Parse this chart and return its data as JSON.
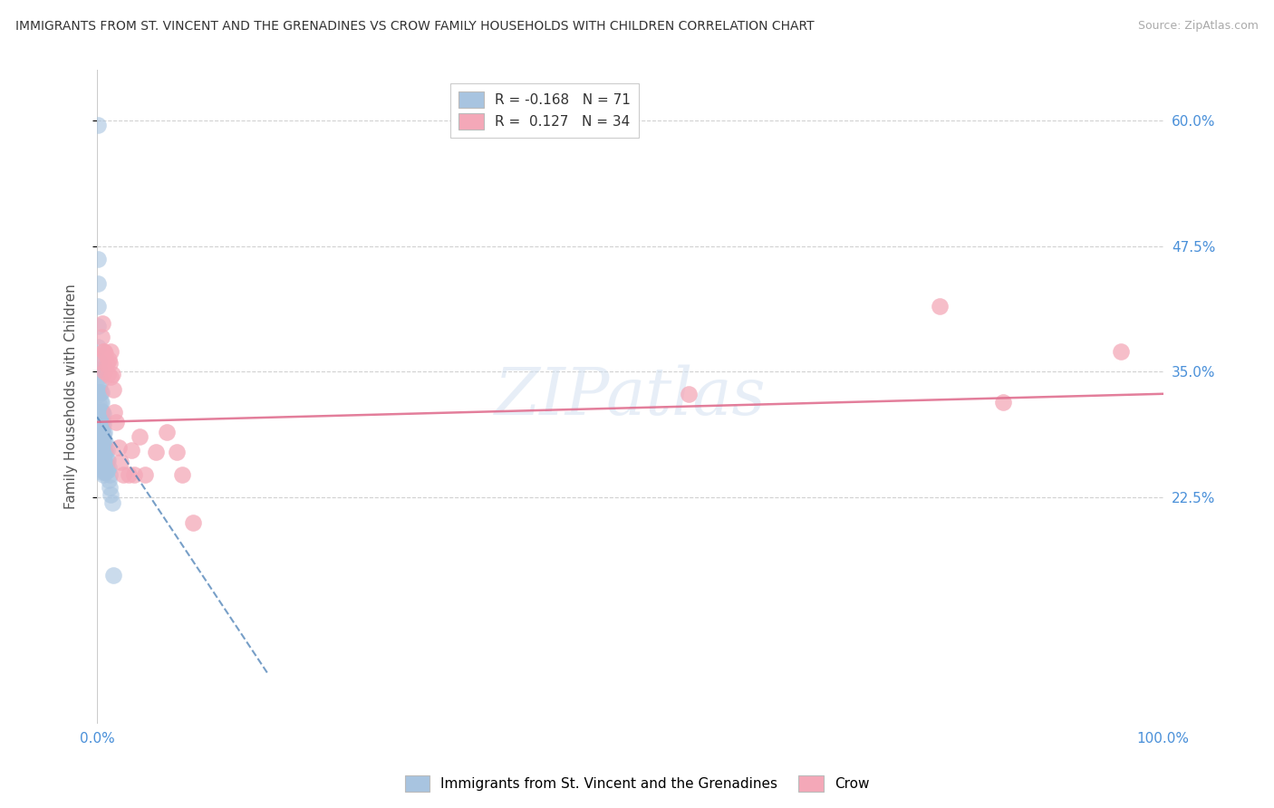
{
  "title": "IMMIGRANTS FROM ST. VINCENT AND THE GRENADINES VS CROW FAMILY HOUSEHOLDS WITH CHILDREN CORRELATION CHART",
  "source": "Source: ZipAtlas.com",
  "ylabel": "Family Households with Children",
  "xlim": [
    0,
    1.0
  ],
  "ylim": [
    0.0,
    0.65
  ],
  "yticks": [
    0.225,
    0.35,
    0.475,
    0.6
  ],
  "ytick_labels": [
    "22.5%",
    "35.0%",
    "47.5%",
    "60.0%"
  ],
  "legend_R1": "-0.168",
  "legend_N1": "71",
  "legend_R2": "0.127",
  "legend_N2": "34",
  "blue_color": "#a8c4e0",
  "pink_color": "#f4a8b8",
  "blue_line_color": "#4a7fb5",
  "pink_line_color": "#e07090",
  "background_color": "#ffffff",
  "grid_color": "#cccccc",
  "axis_color": "#4a90d9",
  "blue_scatter_x": [
    0.001,
    0.001,
    0.001,
    0.001,
    0.001,
    0.001,
    0.001,
    0.001,
    0.002,
    0.002,
    0.002,
    0.002,
    0.002,
    0.002,
    0.002,
    0.002,
    0.002,
    0.002,
    0.003,
    0.003,
    0.003,
    0.003,
    0.003,
    0.003,
    0.003,
    0.003,
    0.003,
    0.004,
    0.004,
    0.004,
    0.004,
    0.004,
    0.004,
    0.004,
    0.004,
    0.004,
    0.005,
    0.005,
    0.005,
    0.005,
    0.005,
    0.005,
    0.005,
    0.006,
    0.006,
    0.006,
    0.006,
    0.006,
    0.006,
    0.006,
    0.007,
    0.007,
    0.007,
    0.007,
    0.007,
    0.008,
    0.008,
    0.008,
    0.008,
    0.009,
    0.009,
    0.009,
    0.01,
    0.01,
    0.011,
    0.011,
    0.012,
    0.012,
    0.013,
    0.014,
    0.015
  ],
  "blue_scatter_y": [
    0.595,
    0.462,
    0.438,
    0.415,
    0.395,
    0.375,
    0.355,
    0.33,
    0.36,
    0.352,
    0.345,
    0.335,
    0.328,
    0.318,
    0.31,
    0.302,
    0.295,
    0.285,
    0.34,
    0.33,
    0.32,
    0.312,
    0.304,
    0.295,
    0.285,
    0.275,
    0.265,
    0.33,
    0.32,
    0.31,
    0.3,
    0.29,
    0.28,
    0.27,
    0.26,
    0.25,
    0.31,
    0.302,
    0.292,
    0.282,
    0.272,
    0.262,
    0.252,
    0.308,
    0.298,
    0.288,
    0.278,
    0.268,
    0.258,
    0.248,
    0.29,
    0.28,
    0.27,
    0.26,
    0.25,
    0.28,
    0.27,
    0.26,
    0.25,
    0.272,
    0.262,
    0.252,
    0.262,
    0.252,
    0.255,
    0.242,
    0.248,
    0.235,
    0.228,
    0.22,
    0.148
  ],
  "pink_scatter_x": [
    0.004,
    0.005,
    0.006,
    0.006,
    0.007,
    0.007,
    0.008,
    0.009,
    0.01,
    0.011,
    0.012,
    0.013,
    0.013,
    0.014,
    0.015,
    0.016,
    0.018,
    0.02,
    0.022,
    0.025,
    0.03,
    0.032,
    0.035,
    0.04,
    0.045,
    0.055,
    0.065,
    0.075,
    0.08,
    0.09,
    0.555,
    0.79,
    0.85,
    0.96
  ],
  "pink_scatter_y": [
    0.385,
    0.398,
    0.37,
    0.358,
    0.37,
    0.35,
    0.368,
    0.358,
    0.348,
    0.362,
    0.358,
    0.37,
    0.345,
    0.348,
    0.332,
    0.31,
    0.3,
    0.275,
    0.26,
    0.248,
    0.248,
    0.272,
    0.248,
    0.285,
    0.248,
    0.27,
    0.29,
    0.27,
    0.248,
    0.2,
    0.328,
    0.415,
    0.32,
    0.37
  ],
  "pink_line_x0": 0.0,
  "pink_line_x1": 1.0,
  "pink_line_y0": 0.3,
  "pink_line_y1": 0.328,
  "blue_line_x0": 0.0,
  "blue_line_x1": 0.16,
  "blue_line_y0": 0.305,
  "blue_line_y1": 0.05
}
